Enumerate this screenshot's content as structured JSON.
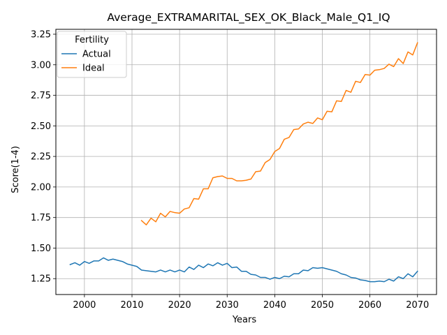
{
  "chart_data": {
    "type": "line",
    "title": "Average_EXTRAMARITAL_SEX_OK_Black_Male_Q1_IQ",
    "xlabel": "Years",
    "ylabel": "Score(1-4)",
    "xlim": [
      1994,
      2074
    ],
    "ylim": [
      1.12,
      3.29
    ],
    "xticks": [
      2000,
      2010,
      2020,
      2030,
      2040,
      2050,
      2060,
      2070
    ],
    "yticks": [
      1.25,
      1.5,
      1.75,
      2.0,
      2.25,
      2.5,
      2.75,
      3.0,
      3.25
    ],
    "ytick_labels": [
      "1.25",
      "1.50",
      "1.75",
      "2.00",
      "2.25",
      "2.50",
      "2.75",
      "3.00",
      "3.25"
    ],
    "grid": true,
    "legend": {
      "title": "Fertility",
      "placement": "upper-left"
    },
    "series": [
      {
        "name": "Actual",
        "color": "#1f77b4",
        "x": [
          1997,
          1998,
          1999,
          2000,
          2001,
          2002,
          2003,
          2004,
          2005,
          2006,
          2007,
          2008,
          2009,
          2010,
          2011,
          2012,
          2013,
          2014,
          2015,
          2016,
          2017,
          2018,
          2019,
          2020,
          2021,
          2022,
          2023,
          2024,
          2025,
          2026,
          2027,
          2028,
          2029,
          2030,
          2031,
          2032,
          2033,
          2034,
          2035,
          2036,
          2037,
          2038,
          2039,
          2040,
          2041,
          2042,
          2043,
          2044,
          2045,
          2046,
          2047,
          2048,
          2049,
          2050,
          2051,
          2052,
          2053,
          2054,
          2055,
          2056,
          2057,
          2058,
          2059,
          2060,
          2061,
          2062,
          2063,
          2064,
          2065,
          2066,
          2067,
          2068,
          2069,
          2070
        ],
        "y": [
          1.365,
          1.38,
          1.36,
          1.39,
          1.375,
          1.395,
          1.395,
          1.42,
          1.4,
          1.41,
          1.4,
          1.39,
          1.37,
          1.36,
          1.35,
          1.32,
          1.315,
          1.31,
          1.305,
          1.32,
          1.305,
          1.32,
          1.305,
          1.32,
          1.305,
          1.345,
          1.325,
          1.36,
          1.34,
          1.37,
          1.355,
          1.38,
          1.36,
          1.375,
          1.34,
          1.345,
          1.31,
          1.31,
          1.285,
          1.28,
          1.26,
          1.26,
          1.245,
          1.26,
          1.25,
          1.27,
          1.265,
          1.29,
          1.29,
          1.32,
          1.315,
          1.34,
          1.335,
          1.34,
          1.33,
          1.32,
          1.31,
          1.29,
          1.28,
          1.26,
          1.255,
          1.24,
          1.235,
          1.225,
          1.225,
          1.23,
          1.225,
          1.245,
          1.23,
          1.265,
          1.25,
          1.29,
          1.265,
          1.31
        ]
      },
      {
        "name": "Ideal",
        "color": "#ff7f0e",
        "x": [
          2012,
          2013,
          2014,
          2015,
          2016,
          2017,
          2018,
          2019,
          2020,
          2021,
          2022,
          2023,
          2024,
          2025,
          2026,
          2027,
          2028,
          2029,
          2030,
          2031,
          2032,
          2033,
          2034,
          2035,
          2036,
          2037,
          2038,
          2039,
          2040,
          2041,
          2042,
          2043,
          2044,
          2045,
          2046,
          2047,
          2048,
          2049,
          2050,
          2051,
          2052,
          2053,
          2054,
          2055,
          2056,
          2057,
          2058,
          2059,
          2060,
          2061,
          2062,
          2063,
          2064,
          2065,
          2066,
          2067,
          2068,
          2069,
          2070
        ],
        "y": [
          1.725,
          1.69,
          1.745,
          1.715,
          1.785,
          1.755,
          1.8,
          1.79,
          1.785,
          1.82,
          1.83,
          1.905,
          1.9,
          1.985,
          1.985,
          2.075,
          2.085,
          2.09,
          2.07,
          2.07,
          2.05,
          2.05,
          2.055,
          2.065,
          2.125,
          2.13,
          2.2,
          2.225,
          2.29,
          2.315,
          2.39,
          2.405,
          2.47,
          2.475,
          2.515,
          2.53,
          2.52,
          2.565,
          2.55,
          2.62,
          2.615,
          2.705,
          2.7,
          2.79,
          2.775,
          2.865,
          2.855,
          2.92,
          2.915,
          2.955,
          2.96,
          2.97,
          3.005,
          2.985,
          3.05,
          3.01,
          3.105,
          3.08,
          3.18
        ]
      }
    ]
  }
}
